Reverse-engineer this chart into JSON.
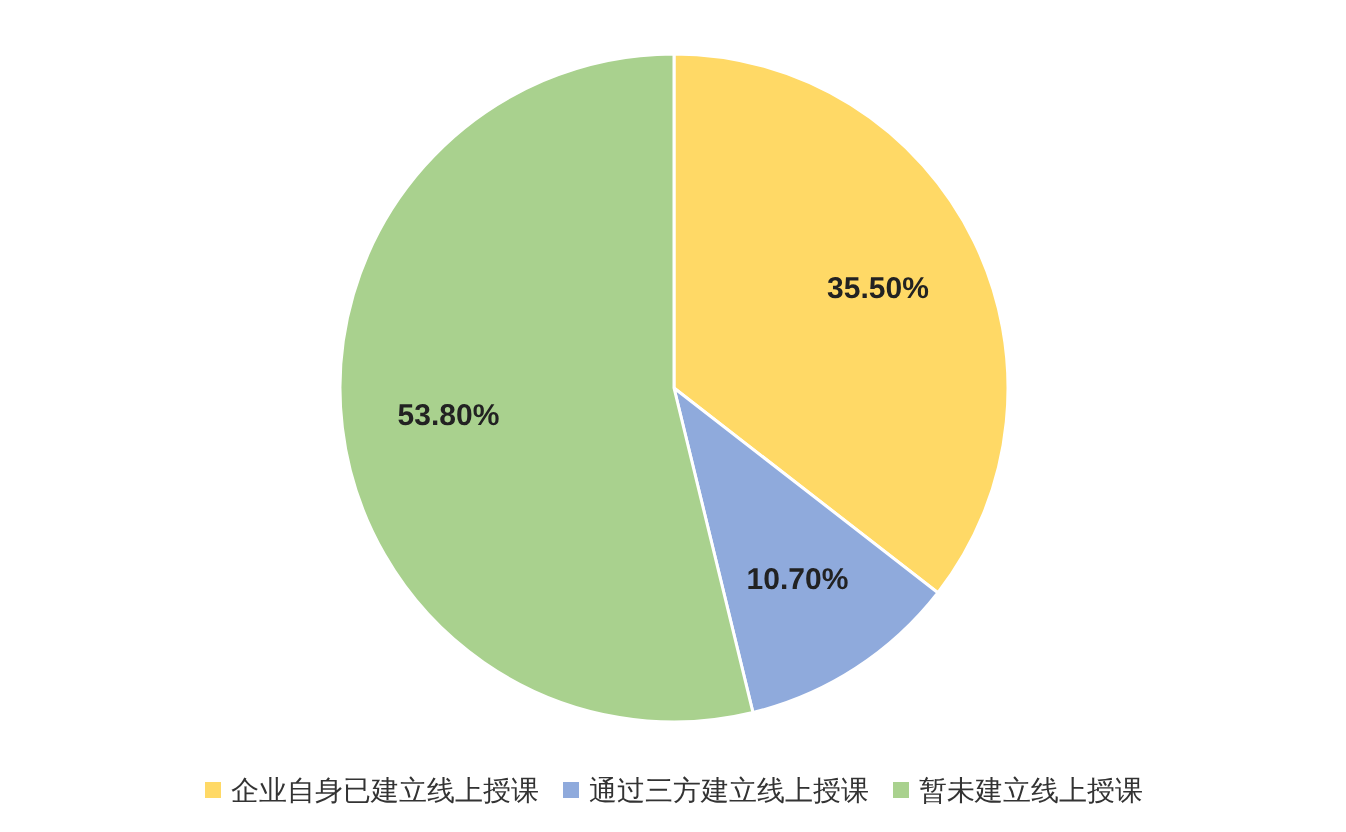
{
  "chart_data": {
    "type": "pie",
    "categories": [
      "企业自身已建立线上授课",
      "通过三方建立线上授课",
      "暂未建立线上授课"
    ],
    "values": [
      35.5,
      10.7,
      53.8
    ],
    "colors": [
      "#ffd966",
      "#8faadc",
      "#a9d18e"
    ],
    "value_labels": [
      "35.50%",
      "10.70%",
      "53.80%"
    ],
    "legend": "bottom"
  }
}
